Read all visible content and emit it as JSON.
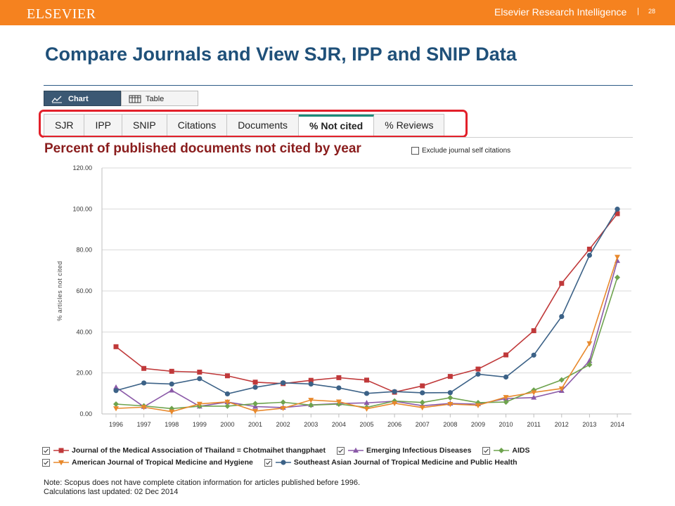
{
  "header": {
    "brand": "ELSEVIER",
    "product": "Elsevier Research Intelligence",
    "separator": "|",
    "page_number": "28"
  },
  "title": "Compare Journals and View SJR, IPP and SNIP Data",
  "view_toggle": {
    "chart_label": "Chart",
    "table_label": "Table",
    "active": "Chart"
  },
  "tabs": [
    {
      "label": "SJR",
      "active": false
    },
    {
      "label": "IPP",
      "active": false
    },
    {
      "label": "SNIP",
      "active": false
    },
    {
      "label": "Citations",
      "active": false
    },
    {
      "label": "Documents",
      "active": false
    },
    {
      "label": "% Not cited",
      "active": true
    },
    {
      "label": "% Reviews",
      "active": false
    }
  ],
  "panel": {
    "subtitle": "Percent of published documents not cited by year",
    "exclude_self_citations_label": "Exclude journal self citations",
    "exclude_self_citations_checked": false
  },
  "accent_colors": {
    "header_orange": "#f5821f",
    "title_blue": "#1f5079",
    "highlight_red": "#e2202a",
    "active_tab_teal": "#1d8a78"
  },
  "chart_data": {
    "type": "line",
    "ylabel": "% articles not cited",
    "xlabel": "",
    "ylim": [
      0,
      120
    ],
    "yticks": [
      "0.00",
      "20.00",
      "40.00",
      "60.00",
      "80.00",
      "100.00",
      "120.00"
    ],
    "categories": [
      "1996",
      "1997",
      "1998",
      "1999",
      "2000",
      "2001",
      "2002",
      "2003",
      "2004",
      "2005",
      "2006",
      "2007",
      "2008",
      "2009",
      "2010",
      "2011",
      "2012",
      "2013",
      "2014"
    ],
    "grid": "horizontal",
    "legend_position": "bottom",
    "series": [
      {
        "name": "Journal of the Medical Association of Thailand = Chotmaihet thangphaet",
        "color": "#c0393a",
        "marker": "square",
        "values": [
          32.8,
          22.2,
          20.8,
          20.4,
          18.6,
          15.5,
          14.8,
          16.4,
          17.7,
          16.5,
          10.6,
          13.7,
          18.3,
          21.9,
          28.8,
          40.6,
          63.7,
          80.4,
          97.7
        ]
      },
      {
        "name": "Emerging Infectious Diseases",
        "color": "#8b5aa8",
        "marker": "triangle",
        "values": [
          13.0,
          3.5,
          11.5,
          3.7,
          5.8,
          3.6,
          3.1,
          4.4,
          5.1,
          5.4,
          6.2,
          4.0,
          5.1,
          4.8,
          7.5,
          8.0,
          11.3,
          25.9,
          74.7
        ]
      },
      {
        "name": "AIDS",
        "color": "#6ea34e",
        "marker": "diamond",
        "values": [
          4.8,
          3.9,
          2.6,
          3.8,
          3.8,
          5.0,
          5.7,
          4.3,
          4.8,
          3.2,
          6.3,
          5.6,
          7.9,
          5.5,
          5.8,
          11.6,
          16.6,
          24.0,
          66.6
        ]
      },
      {
        "name": "American Journal of Tropical Medicine and Hygiene",
        "color": "#e8892c",
        "marker": "triangle-down",
        "values": [
          2.7,
          3.3,
          1.1,
          4.9,
          5.9,
          1.4,
          2.8,
          6.8,
          6.0,
          2.5,
          5.2,
          3.1,
          4.8,
          4.2,
          8.2,
          10.5,
          12.4,
          34.4,
          76.6
        ]
      },
      {
        "name": "Southeast Asian Journal of Tropical Medicine and Public Health",
        "color": "#3c6287",
        "marker": "circle",
        "values": [
          11.4,
          15.1,
          14.6,
          17.2,
          9.8,
          13.0,
          15.2,
          14.6,
          12.7,
          10.0,
          10.9,
          10.3,
          10.4,
          19.4,
          18.0,
          28.7,
          47.5,
          77.4,
          99.9
        ]
      }
    ]
  },
  "notes": [
    "Note: Scopus does not have complete citation information for articles published before 1996.",
    "Calculations last updated: 02 Dec 2014"
  ]
}
